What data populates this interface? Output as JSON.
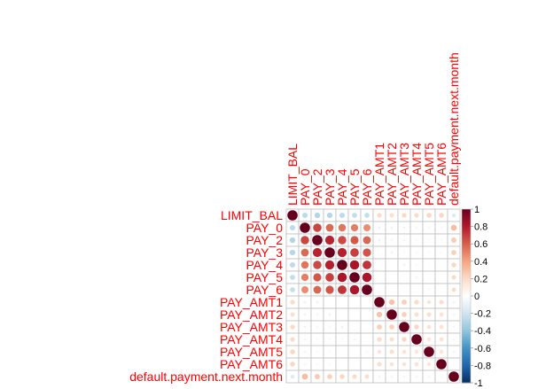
{
  "chart_data": {
    "type": "heatmap",
    "variables": [
      "LIMIT_BAL",
      "PAY_0",
      "PAY_2",
      "PAY_3",
      "PAY_4",
      "PAY_5",
      "PAY_6",
      "PAY_AMT1",
      "PAY_AMT2",
      "PAY_AMT3",
      "PAY_AMT4",
      "PAY_AMT5",
      "PAY_AMT6",
      "default.payment.next.month"
    ],
    "matrix": [
      [
        1.0,
        -0.27,
        -0.3,
        -0.29,
        -0.27,
        -0.25,
        -0.24,
        0.2,
        0.18,
        0.21,
        0.2,
        0.22,
        0.22,
        -0.15
      ],
      [
        -0.27,
        1.0,
        0.67,
        0.57,
        0.54,
        0.51,
        0.47,
        -0.08,
        -0.07,
        -0.07,
        -0.06,
        -0.06,
        -0.06,
        0.32
      ],
      [
        -0.3,
        0.67,
        1.0,
        0.77,
        0.66,
        0.62,
        0.58,
        -0.08,
        -0.06,
        -0.06,
        -0.05,
        -0.04,
        -0.04,
        0.26
      ],
      [
        -0.29,
        0.57,
        0.77,
        1.0,
        0.78,
        0.69,
        0.63,
        0.0,
        -0.07,
        -0.05,
        -0.05,
        -0.04,
        -0.04,
        0.24
      ],
      [
        -0.27,
        0.54,
        0.66,
        0.78,
        1.0,
        0.82,
        0.72,
        -0.01,
        0.0,
        -0.07,
        -0.04,
        -0.03,
        -0.02,
        0.22
      ],
      [
        -0.25,
        0.51,
        0.62,
        0.69,
        0.82,
        1.0,
        0.82,
        -0.01,
        -0.0,
        0.01,
        -0.06,
        -0.03,
        -0.02,
        0.2
      ],
      [
        -0.24,
        0.47,
        0.58,
        0.63,
        0.72,
        0.82,
        1.0,
        -0.0,
        -0.01,
        0.01,
        0.02,
        -0.05,
        -0.03,
        0.19
      ],
      [
        0.2,
        -0.08,
        -0.08,
        0.0,
        -0.01,
        -0.01,
        -0.0,
        1.0,
        0.29,
        0.25,
        0.2,
        0.15,
        0.19,
        -0.07
      ],
      [
        0.18,
        -0.07,
        -0.06,
        -0.07,
        0.0,
        -0.0,
        -0.01,
        0.29,
        1.0,
        0.24,
        0.18,
        0.18,
        0.16,
        -0.06
      ],
      [
        0.21,
        -0.07,
        -0.06,
        -0.05,
        -0.07,
        0.01,
        0.01,
        0.25,
        0.24,
        1.0,
        0.22,
        0.16,
        0.16,
        -0.06
      ],
      [
        0.2,
        -0.06,
        -0.05,
        -0.05,
        -0.04,
        -0.06,
        0.02,
        0.2,
        0.18,
        0.22,
        1.0,
        0.15,
        0.16,
        -0.06
      ],
      [
        0.22,
        -0.06,
        -0.04,
        -0.04,
        -0.03,
        -0.03,
        -0.05,
        0.15,
        0.18,
        0.16,
        0.15,
        1.0,
        0.15,
        -0.06
      ],
      [
        0.22,
        -0.06,
        -0.04,
        -0.04,
        -0.02,
        -0.02,
        -0.03,
        0.19,
        0.16,
        0.16,
        0.16,
        0.15,
        1.0,
        -0.05
      ],
      [
        -0.15,
        0.32,
        0.26,
        0.24,
        0.22,
        0.2,
        0.19,
        -0.07,
        -0.06,
        -0.06,
        -0.06,
        -0.06,
        -0.05,
        1.0
      ]
    ],
    "color_scale": {
      "range": [
        -1,
        1
      ],
      "ticks": [
        "1",
        "0.8",
        "0.6",
        "0.4",
        "0.2",
        "0",
        "-0.2",
        "-0.4",
        "-0.6",
        "-0.8",
        "-1"
      ],
      "colors": [
        "#67001F",
        "#B2182B",
        "#D6604D",
        "#F4A582",
        "#FDDBC7",
        "#FFFFFF",
        "#D1E5F0",
        "#92C5DE",
        "#4393C3",
        "#2166AC",
        "#053061"
      ]
    },
    "label_color": "#FF0000",
    "grid_color": "#BEBEBE",
    "method": "circle",
    "type_layout": "full",
    "grid": true,
    "legend": "right"
  }
}
